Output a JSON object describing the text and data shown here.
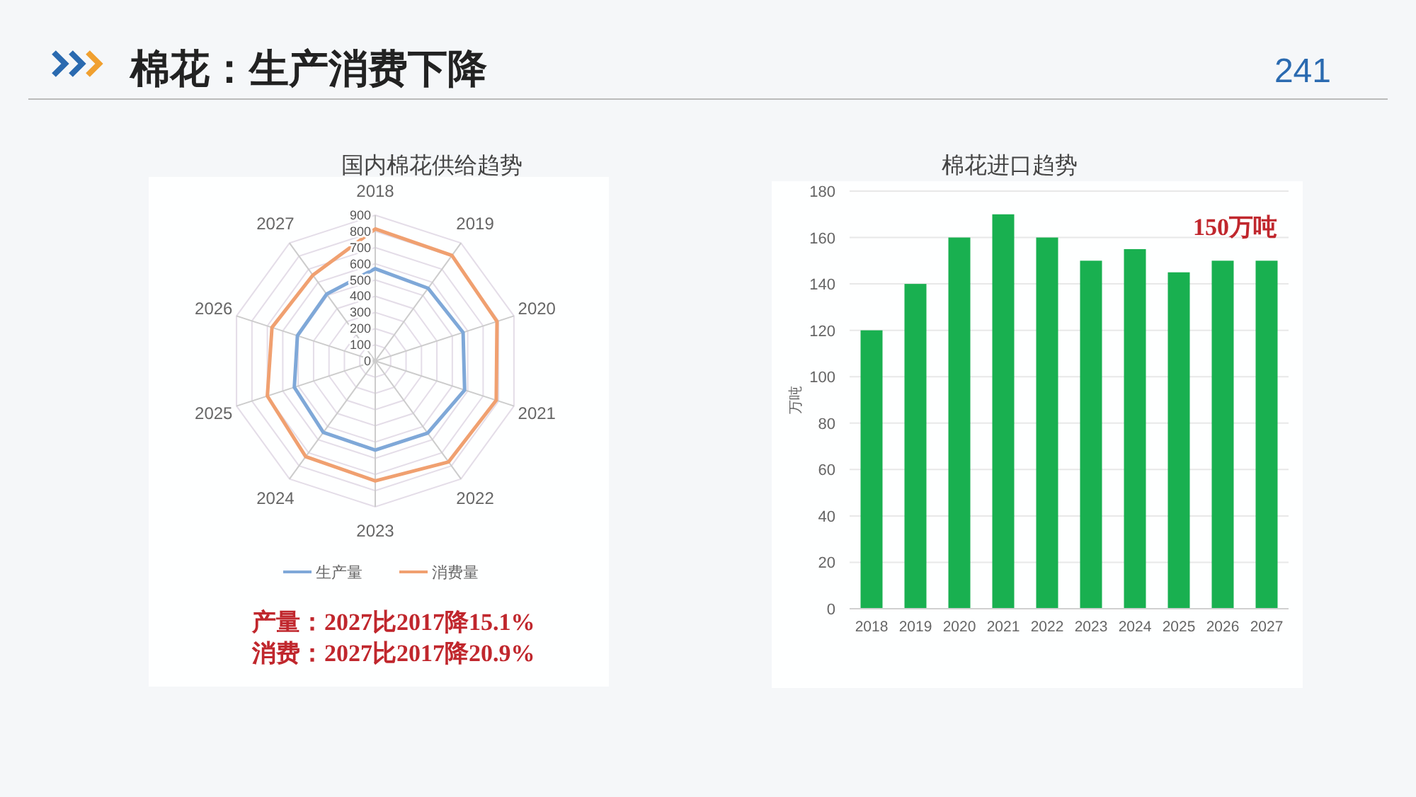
{
  "chart_data": [
    {
      "type": "other",
      "title": "棉花：生产消费下降",
      "annotations": [
        "241"
      ]
    },
    {
      "type": "radar",
      "title": "国内棉花供给趋势",
      "categories": [
        "2018",
        "2019",
        "2020",
        "2021",
        "2022",
        "2023",
        "2024",
        "2025",
        "2026",
        "2027"
      ],
      "series": [
        {
          "name": "生产量",
          "color": "#7fa8d8",
          "values": [
            570,
            555,
            570,
            580,
            550,
            550,
            545,
            525,
            505,
            510
          ]
        },
        {
          "name": "消费量",
          "color": "#f0a070",
          "values": [
            815,
            805,
            790,
            785,
            770,
            740,
            730,
            700,
            670,
            655
          ]
        }
      ],
      "ylim": [
        0,
        900
      ],
      "yticks": [
        0,
        100,
        200,
        300,
        400,
        500,
        600,
        700,
        800,
        900
      ],
      "grid": true,
      "legend": "bottom",
      "annotations": [
        "产量：2027比2017降15.1%",
        "消费：2027比2017降20.9%"
      ]
    },
    {
      "type": "bar",
      "title": "棉花进口趋势",
      "categories": [
        "2018",
        "2019",
        "2020",
        "2021",
        "2022",
        "2023",
        "2024",
        "2025",
        "2026",
        "2027"
      ],
      "values": [
        120,
        140,
        160,
        170,
        160,
        150,
        155,
        145,
        150,
        150
      ],
      "color": "#19b050",
      "ylim": [
        0,
        180
      ],
      "yticks": [
        0,
        20,
        40,
        60,
        80,
        100,
        120,
        140,
        160,
        180
      ],
      "ylabel": "万吨",
      "grid": "y",
      "annotations": [
        "150万吨"
      ]
    }
  ]
}
